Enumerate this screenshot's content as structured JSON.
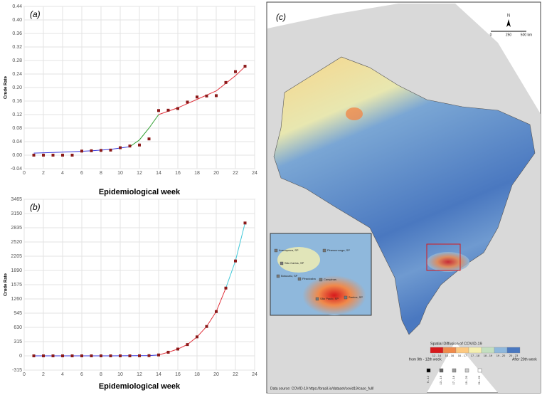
{
  "chart_data": [
    {
      "type": "scatter-fit",
      "panel_label": "(a)",
      "y_label": "Crude Rate",
      "x_label": "Epidemiological week",
      "xlim": [
        0,
        24
      ],
      "xticks": [
        0,
        2,
        4,
        6,
        8,
        10,
        12,
        14,
        16,
        18,
        20,
        22,
        24
      ],
      "ylim": [
        -0.04,
        0.44
      ],
      "yticks": [
        -0.04,
        {
          "value": 0,
          "label": "0.00"
        },
        0.04,
        0.08,
        0.12,
        0.16,
        {
          "value": 0.2,
          "label": "0.20"
        },
        0.24,
        0.28,
        0.32,
        0.36,
        {
          "value": 0.4,
          "label": "0.40"
        },
        0.44
      ],
      "grid": true,
      "series": [
        {
          "kind": "points",
          "color": "#8b1a1a",
          "x": [
            1,
            2,
            3,
            4,
            5,
            6,
            7,
            8,
            9,
            10,
            11,
            12,
            13,
            14,
            15,
            16,
            17,
            18,
            19,
            20,
            21,
            22,
            23
          ],
          "values": [
            0,
            0,
            0,
            0,
            0,
            0.012,
            0.013,
            0.014,
            0.015,
            0.022,
            0.027,
            0.03,
            0.048,
            0.132,
            0.133,
            0.138,
            0.157,
            0.172,
            0.175,
            0.176,
            0.215,
            0.247,
            0.263
          ]
        },
        {
          "kind": "line",
          "color": "#3a3adb",
          "x": [
            1,
            3,
            5,
            7,
            9,
            11
          ],
          "values": [
            0.006,
            0.008,
            0.01,
            0.013,
            0.017,
            0.025
          ]
        },
        {
          "kind": "line",
          "color": "#2e9e2e",
          "x": [
            11,
            12,
            13,
            14
          ],
          "values": [
            0.025,
            0.045,
            0.08,
            0.12
          ]
        },
        {
          "kind": "line",
          "color": "#e0303a",
          "x": [
            14,
            16,
            18,
            20,
            22,
            23
          ],
          "values": [
            0.12,
            0.14,
            0.165,
            0.19,
            0.235,
            0.262
          ]
        }
      ]
    },
    {
      "type": "scatter-fit",
      "panel_label": "(b)",
      "y_label": "Crude Rate",
      "x_label": "Epidemiological week",
      "xlim": [
        0,
        24
      ],
      "xticks": [
        0,
        2,
        4,
        6,
        8,
        10,
        12,
        14,
        16,
        18,
        20,
        22,
        24
      ],
      "ylim": [
        -315,
        3465
      ],
      "yticks": [
        -315,
        0,
        315,
        630,
        945,
        1260,
        1575,
        1890,
        2205,
        2520,
        2835,
        3150,
        3465
      ],
      "grid": true,
      "series": [
        {
          "kind": "points",
          "color": "#8b1a1a",
          "x": [
            1,
            2,
            3,
            4,
            5,
            6,
            7,
            8,
            9,
            10,
            11,
            12,
            13,
            14,
            15,
            16,
            17,
            18,
            19,
            20,
            21,
            22,
            23
          ],
          "values": [
            0,
            0,
            0,
            0,
            0,
            0,
            0,
            0,
            0,
            0,
            0,
            2,
            5,
            20,
            80,
            150,
            250,
            420,
            650,
            980,
            1500,
            2100,
            2940
          ]
        },
        {
          "kind": "line",
          "color": "#3a3adb",
          "x": [
            1,
            5,
            9,
            13,
            14
          ],
          "values": [
            0,
            0,
            0,
            5,
            20
          ]
        },
        {
          "kind": "line",
          "color": "#e0303a",
          "x": [
            14,
            15,
            16,
            17,
            18,
            19,
            20,
            21
          ],
          "values": [
            20,
            80,
            150,
            250,
            420,
            650,
            980,
            1500
          ]
        },
        {
          "kind": "line",
          "color": "#40c8d8",
          "x": [
            21,
            22,
            23
          ],
          "values": [
            1500,
            2100,
            2940
          ]
        }
      ]
    }
  ],
  "map": {
    "panel_label": "(c)",
    "north": "N",
    "scale": [
      "0",
      "250",
      "500 km"
    ],
    "legend": {
      "title": "Spatial Diffusion of COVID-19",
      "from": "from 9th - 12th week",
      "after": "After 20th week",
      "classes": [
        {
          "label": "12 - 14",
          "color": "#d7191c"
        },
        {
          "label": "14 - 16",
          "color": "#f08a4b"
        },
        {
          "label": "16 - 17",
          "color": "#fdc980"
        },
        {
          "label": "17 - 18",
          "color": "#f5f0b0"
        },
        {
          "label": "18 - 19",
          "color": "#c4dfc0"
        },
        {
          "label": "19 - 20",
          "color": "#8fb8dc"
        },
        {
          "label": "20 - 23",
          "color": "#4a78c0"
        }
      ],
      "squares": [
        {
          "label": "9 - 12",
          "color": "#000000"
        },
        {
          "label": "13 - 16",
          "color": "#666666"
        },
        {
          "label": "17 - 18",
          "color": "#999999"
        },
        {
          "label": "19 - 20",
          "color": "#cccccc"
        },
        {
          "label": "21 - 23",
          "color": "#ffffff"
        }
      ]
    },
    "inset_labels": [
      "Araraquara, SP",
      "Pirassununga, SP",
      "São Carlos, SP",
      "Botucatu, SP",
      "Piracicaba",
      "Campinas",
      "São Paulo, SP",
      "Santos, SP"
    ],
    "source": "Data source: COVID-19 https://brasil.io/dataset/covid19/caso_full/"
  }
}
